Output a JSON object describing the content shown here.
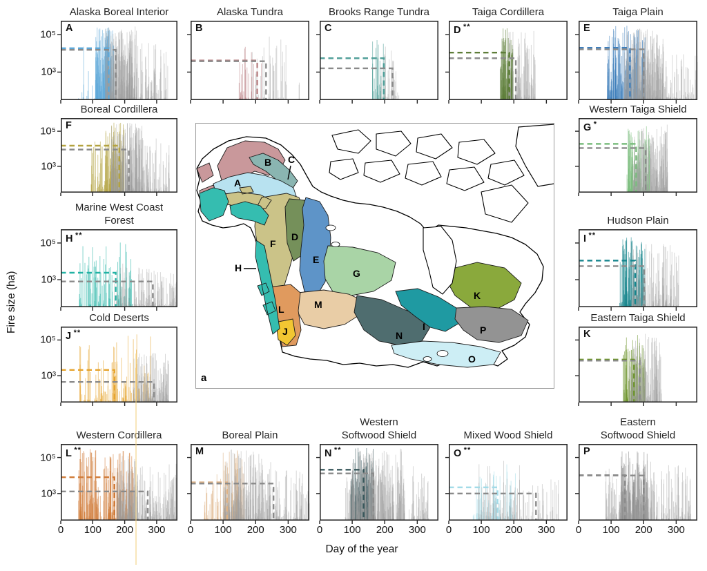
{
  "figure": {
    "ylabel": "Fire size (ha)",
    "xlabel": "Day of the year",
    "map_panel_label": "a"
  },
  "chart_data": {
    "type": "event-spike-panels",
    "description": "Fire size (ha, log scale) vs day of year for 16 North American ecozones; colored spikes = ecozone fires, gray spikes = all-region reference; dashed horizontal lines mark median fire size (colored = ecozone, gray = reference) extending to median end-of-season day where a dashed vertical drops to the axis.",
    "x_domain": [
      0,
      365
    ],
    "y_log_domain": [
      1.5,
      5.75
    ],
    "ytick_labels": [
      "10⁵",
      "10³"
    ],
    "xtick_labels": [
      0,
      100,
      200,
      300
    ],
    "gray_spike_color": "#9e9e9e",
    "gray_dash_color": "#8a8a8a",
    "panels": [
      {
        "letter": "A",
        "stars": "",
        "title_lines": [
          "Alaska Boreal Interior"
        ],
        "color": "#5da8d8",
        "seed": 7,
        "colored_median_ha": 19000,
        "colored_end_day": 150,
        "gray_median_ha": 15500,
        "gray_end_day": 172,
        "colored_clusters": [
          [
            55,
            112,
            10,
            4.5,
            2.2
          ],
          [
            105,
            168,
            130,
            5.42,
            1.7
          ]
        ],
        "gray_clusters": [
          [
            140,
            238,
            240,
            5.45,
            1.6
          ],
          [
            238,
            335,
            70,
            4.6,
            2.4
          ]
        ],
        "show_yticks": true,
        "show_xticks": false
      },
      {
        "letter": "B",
        "stars": "",
        "title_lines": [
          "Alaska Tundra"
        ],
        "color": "#bb8486",
        "seed": 13,
        "colored_median_ha": 4200,
        "colored_end_day": 205,
        "gray_median_ha": 3800,
        "gray_end_day": 232,
        "colored_clusters": [
          [
            148,
            218,
            30,
            4.95,
            2.2
          ]
        ],
        "gray_clusters": [
          [
            186,
            296,
            45,
            5.0,
            2.4
          ],
          [
            325,
            336,
            2,
            4.0,
            1.0
          ]
        ],
        "show_yticks": false,
        "show_xticks": false
      },
      {
        "letter": "C",
        "stars": "",
        "title_lines": [
          "Brooks Range Tundra"
        ],
        "color": "#4f9e98",
        "seed": 21,
        "colored_median_ha": 5500,
        "colored_end_day": 197,
        "gray_median_ha": 1600,
        "gray_end_day": 224,
        "colored_clusters": [
          [
            158,
            205,
            26,
            5.25,
            2.1
          ]
        ],
        "gray_clusters": [
          [
            186,
            245,
            40,
            4.55,
            2.2
          ]
        ],
        "show_yticks": false,
        "show_xticks": false
      },
      {
        "letter": "D",
        "stars": "**",
        "title_lines": [
          "Taiga Cordillera"
        ],
        "color": "#5d7d38",
        "seed": 29,
        "colored_median_ha": 11000,
        "colored_end_day": 186,
        "gray_median_ha": 5500,
        "gray_end_day": 206,
        "colored_clusters": [
          [
            158,
            198,
            95,
            5.35,
            1.6
          ]
        ],
        "gray_clusters": [
          [
            182,
            266,
            95,
            5.25,
            2.0
          ]
        ],
        "show_yticks": false,
        "show_xticks": false
      },
      {
        "letter": "E",
        "stars": "",
        "title_lines": [
          "Taiga Plain"
        ],
        "color": "#3f7fbc",
        "seed": 37,
        "colored_median_ha": 20000,
        "colored_end_day": 158,
        "gray_median_ha": 16500,
        "gray_end_day": 200,
        "colored_clusters": [
          [
            88,
            205,
            170,
            5.5,
            1.8
          ]
        ],
        "gray_clusters": [
          [
            140,
            260,
            240,
            5.35,
            1.7
          ],
          [
            260,
            365,
            80,
            4.3,
            2.6
          ]
        ],
        "show_yticks": false,
        "show_xticks": false
      },
      {
        "letter": "F",
        "stars": "",
        "title_lines": [
          "Boreal Cordillera"
        ],
        "color": "#b3a23f",
        "seed": 45,
        "colored_median_ha": 15000,
        "colored_end_day": 183,
        "gray_median_ha": 9000,
        "gray_end_day": 213,
        "colored_clusters": [
          [
            95,
            148,
            40,
            4.6,
            2.3
          ],
          [
            140,
            198,
            110,
            5.5,
            1.6
          ]
        ],
        "gray_clusters": [
          [
            158,
            260,
            220,
            5.5,
            1.7
          ],
          [
            260,
            340,
            70,
            4.6,
            2.4
          ]
        ],
        "show_yticks": true,
        "show_xticks": false
      },
      {
        "letter": "G",
        "stars": "*",
        "title_lines": [
          "Western Taiga Shield"
        ],
        "color": "#7bbd7e",
        "seed": 53,
        "colored_median_ha": 19000,
        "colored_end_day": 177,
        "gray_median_ha": 11000,
        "gray_end_day": 206,
        "colored_clusters": [
          [
            148,
            218,
            120,
            5.35,
            1.7
          ]
        ],
        "gray_clusters": [
          [
            166,
            275,
            210,
            5.4,
            1.7
          ]
        ],
        "show_yticks": false,
        "show_xticks": false
      },
      {
        "letter": "H",
        "stars": "**",
        "title_lines": [
          "Marine West Coast",
          "Forest"
        ],
        "color": "#22b2a4",
        "seed": 61,
        "colored_median_ha": 2400,
        "colored_end_day": 172,
        "gray_median_ha": 800,
        "gray_end_day": 288,
        "colored_clusters": [
          [
            58,
            225,
            95,
            5.05,
            2.6
          ]
        ],
        "gray_clusters": [
          [
            168,
            300,
            120,
            3.9,
            2.4
          ],
          [
            300,
            365,
            60,
            3.5,
            2.6
          ]
        ],
        "show_yticks": true,
        "show_xticks": false
      },
      {
        "letter": "I",
        "stars": "**",
        "title_lines": [
          "Hudson Plain"
        ],
        "color": "#15858d",
        "seed": 69,
        "colored_median_ha": 11000,
        "colored_end_day": 174,
        "gray_median_ha": 5500,
        "gray_end_day": 202,
        "colored_clusters": [
          [
            126,
            205,
            120,
            5.35,
            1.9
          ]
        ],
        "gray_clusters": [
          [
            162,
            308,
            160,
            5.05,
            2.2
          ]
        ],
        "show_yticks": false,
        "show_xticks": false
      },
      {
        "letter": "J",
        "stars": "**",
        "title_lines": [
          "Cold Deserts"
        ],
        "color": "#e6a42e",
        "seed": 77,
        "colored_median_ha": 2100,
        "colored_end_day": 168,
        "gray_median_ha": 450,
        "gray_end_day": 292,
        "colored_clusters": [
          [
            58,
            288,
            120,
            5.3,
            2.6
          ],
          [
            236,
            239,
            2,
            5.74,
            0.3
          ]
        ],
        "gray_clusters": [
          [
            225,
            338,
            170,
            4.3,
            2.4
          ]
        ],
        "show_yticks": true,
        "show_xticks": false
      },
      {
        "letter": "K",
        "stars": "",
        "title_lines": [
          "Eastern Taiga Shield"
        ],
        "color": "#6f9530",
        "seed": 85,
        "colored_median_ha": 8000,
        "colored_end_day": 170,
        "gray_median_ha": 7000,
        "gray_end_day": 188,
        "colored_clusters": [
          [
            136,
            205,
            105,
            5.3,
            1.8
          ]
        ],
        "gray_clusters": [
          [
            156,
            255,
            150,
            5.35,
            1.9
          ]
        ],
        "show_yticks": false,
        "show_xticks": false
      },
      {
        "letter": "L",
        "stars": "**",
        "title_lines": [
          "Western Cordillera"
        ],
        "color": "#d07a36",
        "seed": 93,
        "colored_median_ha": 8000,
        "colored_end_day": 168,
        "gray_median_ha": 1300,
        "gray_end_day": 272,
        "colored_clusters": [
          [
            55,
            228,
            210,
            5.5,
            1.9
          ]
        ],
        "gray_clusters": [
          [
            176,
            240,
            140,
            5.1,
            1.9
          ],
          [
            240,
            362,
            150,
            4.7,
            2.2
          ]
        ],
        "show_yticks": true,
        "show_xticks": true
      },
      {
        "letter": "M",
        "stars": "",
        "title_lines": [
          "Boreal Plain"
        ],
        "color": "#ddb184",
        "seed": 101,
        "colored_median_ha": 4200,
        "colored_end_day": 112,
        "gray_median_ha": 3600,
        "gray_end_day": 255,
        "colored_clusters": [
          [
            40,
            110,
            40,
            4.3,
            2.4
          ],
          [
            100,
            165,
            70,
            5.45,
            1.8
          ]
        ],
        "gray_clusters": [
          [
            100,
            250,
            230,
            5.5,
            1.8
          ],
          [
            250,
            365,
            90,
            4.5,
            2.4
          ]
        ],
        "show_yticks": false,
        "show_xticks": true
      },
      {
        "letter": "N",
        "stars": "**",
        "title_lines": [
          "Western",
          "Softwood Shield"
        ],
        "color": "#39585c",
        "seed": 109,
        "colored_median_ha": 21000,
        "colored_end_day": 135,
        "gray_median_ha": 13000,
        "gray_end_day": 165,
        "colored_clusters": [
          [
            95,
            168,
            150,
            5.55,
            1.6
          ]
        ],
        "gray_clusters": [
          [
            78,
            100,
            20,
            4.4,
            2.3
          ],
          [
            100,
            262,
            280,
            5.5,
            1.7
          ],
          [
            272,
            335,
            50,
            4.6,
            2.2
          ]
        ],
        "show_yticks": false,
        "show_xticks": true
      },
      {
        "letter": "O",
        "stars": "**",
        "title_lines": [
          "Mixed Wood Shield"
        ],
        "color": "#a2dbe8",
        "seed": 117,
        "colored_median_ha": 2200,
        "colored_end_day": 150,
        "gray_median_ha": 1000,
        "gray_end_day": 268,
        "colored_clusters": [
          [
            72,
            205,
            75,
            4.7,
            2.4
          ]
        ],
        "gray_clusters": [
          [
            88,
            230,
            90,
            4.95,
            2.4
          ],
          [
            230,
            340,
            40,
            4.0,
            2.6
          ]
        ],
        "show_yticks": false,
        "show_xticks": true
      },
      {
        "letter": "P",
        "stars": "",
        "title_lines": [
          "Eastern",
          "Softwood Shield"
        ],
        "color": "#8c8c8c",
        "seed": 125,
        "colored_median_ha": 10500,
        "colored_end_day": 142,
        "gray_median_ha": 10000,
        "gray_end_day": 200,
        "colored_clusters": [
          [
            125,
            215,
            180,
            5.35,
            1.8
          ]
        ],
        "gray_clusters": [
          [
            80,
            130,
            50,
            4.6,
            2.4
          ],
          [
            130,
            225,
            120,
            5.0,
            2.0
          ],
          [
            225,
            345,
            110,
            4.6,
            2.4
          ]
        ],
        "show_yticks": false,
        "show_xticks": true
      }
    ]
  },
  "map": {
    "panel_label": "a",
    "regions": [
      {
        "letter": "A",
        "name": "Alaska Boreal Interior",
        "color": "#b8e2f0"
      },
      {
        "letter": "B",
        "name": "Alaska Tundra",
        "color": "#c9989b"
      },
      {
        "letter": "C",
        "name": "Brooks Range Tundra",
        "color": "#8ab5b1"
      },
      {
        "letter": "D",
        "name": "Taiga Cordillera",
        "color": "#75905a"
      },
      {
        "letter": "E",
        "name": "Taiga Plain",
        "color": "#5e94c8"
      },
      {
        "letter": "F",
        "name": "Boreal Cordillera",
        "color": "#cbc388"
      },
      {
        "letter": "G",
        "name": "Western Taiga Shield",
        "color": "#a9d4a6"
      },
      {
        "letter": "H",
        "name": "Marine West Coast Forest",
        "color": "#35bdb0"
      },
      {
        "letter": "I",
        "name": "Hudson Plain",
        "color": "#1f9aa2"
      },
      {
        "letter": "J",
        "name": "Cold Deserts",
        "color": "#f2c632"
      },
      {
        "letter": "K",
        "name": "Eastern Taiga Shield",
        "color": "#8aa93c"
      },
      {
        "letter": "L",
        "name": "Western Cordillera",
        "color": "#e09a5e"
      },
      {
        "letter": "M",
        "name": "Boreal Plain",
        "color": "#e9cda6"
      },
      {
        "letter": "N",
        "name": "Western Softwood Shield",
        "color": "#4f6d6f"
      },
      {
        "letter": "O",
        "name": "Mixed Wood Shield",
        "color": "#cdeef5"
      },
      {
        "letter": "P",
        "name": "Eastern Softwood Shield",
        "color": "#939393"
      }
    ]
  }
}
